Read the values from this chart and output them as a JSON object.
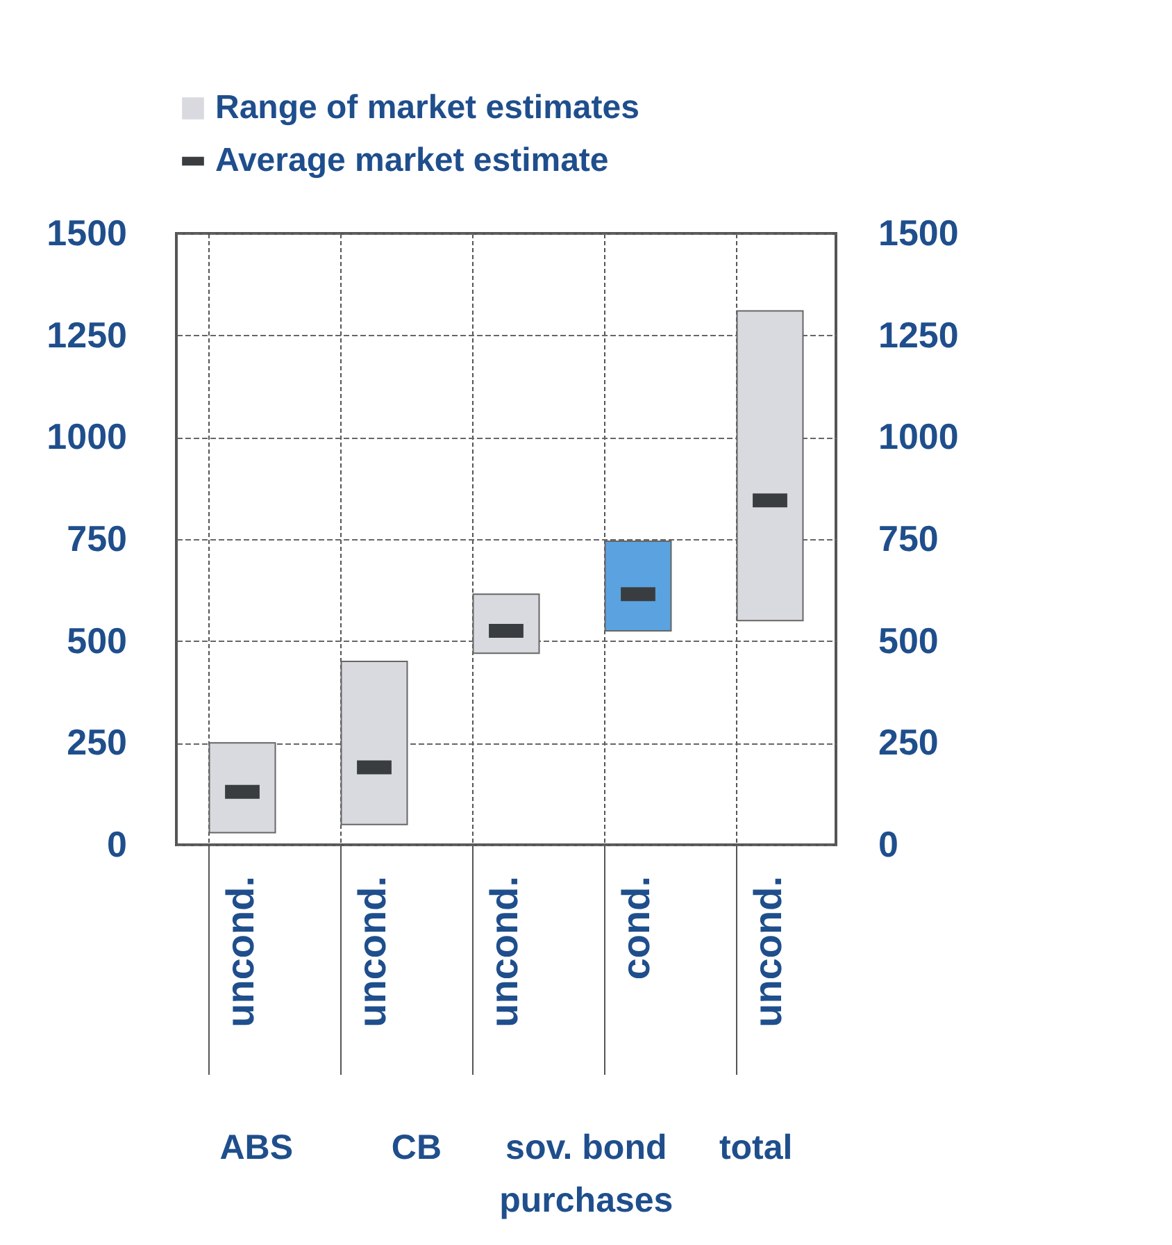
{
  "chart_data": {
    "type": "bar",
    "categories": [
      "uncond.",
      "uncond.",
      "uncond.",
      "cond.",
      "uncond."
    ],
    "annotations": [
      "ABS",
      "CB",
      "sov. bond purchases",
      "total"
    ],
    "series": [
      {
        "name": "Range of market estimates",
        "colors": [
          "#d9dadf",
          "#d9dadf",
          "#d9dadf",
          "#5aa3e0",
          "#d9dadf"
        ],
        "color": "#d9dadf",
        "base": [
          30,
          50,
          470,
          525,
          550
        ],
        "values": [
          220,
          400,
          145,
          220,
          760
        ]
      },
      {
        "name": "Average market estimate",
        "type": "scatter",
        "color": "#3a3d40",
        "values": [
          130,
          190,
          525,
          615,
          845
        ]
      }
    ],
    "ylim": [
      0,
      1500
    ],
    "yticks": [
      0,
      250,
      500,
      750,
      1000,
      1250,
      1500
    ],
    "y2lim": [
      0,
      1500
    ],
    "y2ticks": [
      0,
      250,
      500,
      750,
      1000,
      1250,
      1500
    ],
    "grid": true,
    "legend": "top"
  }
}
